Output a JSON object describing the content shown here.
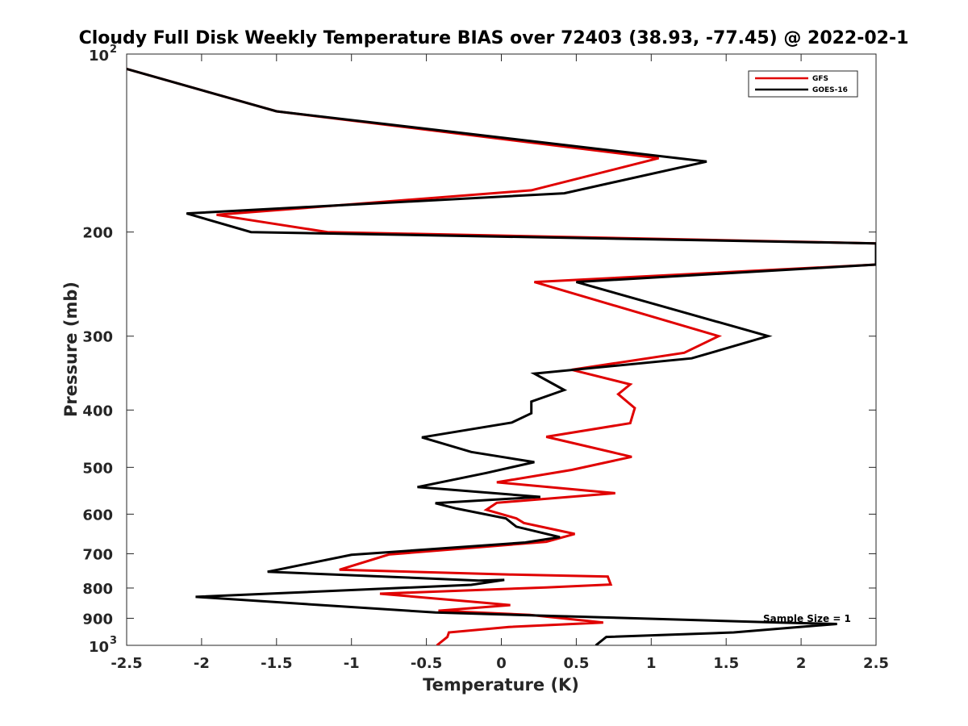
{
  "chart_data": {
    "type": "line",
    "title": "Cloudy Full Disk Weekly Temperature BIAS over 72403 (38.93, -77.45) @ 2022-02-1",
    "xlabel": "Temperature (K)",
    "ylabel": "Pressure (mb)",
    "xlim": [
      -2.5,
      2.5
    ],
    "ylim": [
      100,
      1000
    ],
    "y_scale": "log",
    "y_reversed": true,
    "grid": false,
    "legend_position": "top-right",
    "x_ticks": [
      "-2.5",
      "-2",
      "-1.5",
      "-1",
      "-0.5",
      "0",
      "0.5",
      "1",
      "1.5",
      "2",
      "2.5"
    ],
    "y_ticks": [
      {
        "value": 100,
        "label": "10",
        "sup": "2"
      },
      {
        "value": 200,
        "label": "200",
        "sup": ""
      },
      {
        "value": 300,
        "label": "300",
        "sup": ""
      },
      {
        "value": 400,
        "label": "400",
        "sup": ""
      },
      {
        "value": 500,
        "label": "500",
        "sup": ""
      },
      {
        "value": 600,
        "label": "600",
        "sup": ""
      },
      {
        "value": 700,
        "label": "700",
        "sup": ""
      },
      {
        "value": 800,
        "label": "800",
        "sup": ""
      },
      {
        "value": 900,
        "label": "900",
        "sup": ""
      },
      {
        "value": 1000,
        "label": "10",
        "sup": "3"
      }
    ],
    "annotation": "Sample Size = 1",
    "series": [
      {
        "name": "GFS",
        "color": "#e00000",
        "points": [
          [
            -2.5,
            106
          ],
          [
            -1.5,
            125
          ],
          [
            1.05,
            150
          ],
          [
            0.2,
            170
          ],
          [
            -1.9,
            187
          ],
          [
            -1.16,
            200
          ],
          [
            2.5,
            209
          ],
          [
            2.5,
            227
          ],
          [
            0.22,
            243
          ],
          [
            1.45,
            300
          ],
          [
            1.22,
            320
          ],
          [
            0.47,
            342
          ],
          [
            0.86,
            362
          ],
          [
            0.78,
            376
          ],
          [
            0.89,
            397
          ],
          [
            0.86,
            421
          ],
          [
            0.3,
            444
          ],
          [
            0.87,
            480
          ],
          [
            0.47,
            505
          ],
          [
            -0.03,
            530
          ],
          [
            0.76,
            553
          ],
          [
            -0.03,
            574
          ],
          [
            -0.1,
            590
          ],
          [
            0.1,
            610
          ],
          [
            0.15,
            621
          ],
          [
            0.49,
            648
          ],
          [
            0.3,
            668
          ],
          [
            -0.75,
            702
          ],
          [
            -1.08,
            745
          ],
          [
            0.06,
            759
          ],
          [
            0.71,
            765
          ],
          [
            0.73,
            789
          ],
          [
            0.3,
            798
          ],
          [
            -0.81,
            818
          ],
          [
            -0.12,
            847
          ],
          [
            0.06,
            855
          ],
          [
            -0.42,
            874
          ],
          [
            0.19,
            888
          ],
          [
            0.68,
            915
          ],
          [
            0.05,
            931
          ],
          [
            -0.35,
            951
          ],
          [
            -0.36,
            968
          ],
          [
            -0.43,
            1000
          ]
        ]
      },
      {
        "name": "GOES-16",
        "color": "#000000",
        "points": [
          [
            -2.5,
            106
          ],
          [
            -1.5,
            125
          ],
          [
            1.37,
            152
          ],
          [
            0.42,
            172
          ],
          [
            -2.1,
            186
          ],
          [
            -1.67,
            200
          ],
          [
            2.5,
            209
          ],
          [
            2.5,
            227
          ],
          [
            0.5,
            243
          ],
          [
            1.78,
            300
          ],
          [
            1.27,
            327
          ],
          [
            0.22,
            347
          ],
          [
            0.42,
            370
          ],
          [
            0.2,
            387
          ],
          [
            0.2,
            405
          ],
          [
            0.07,
            420
          ],
          [
            -0.53,
            445
          ],
          [
            -0.2,
            471
          ],
          [
            0.22,
            490
          ],
          [
            -0.1,
            511
          ],
          [
            -0.56,
            540
          ],
          [
            0.26,
            561
          ],
          [
            -0.44,
            575
          ],
          [
            -0.3,
            587
          ],
          [
            0.03,
            610
          ],
          [
            0.1,
            630
          ],
          [
            0.39,
            656
          ],
          [
            0.16,
            670
          ],
          [
            -1.0,
            703
          ],
          [
            -1.56,
            751
          ],
          [
            -0.15,
            777
          ],
          [
            0.02,
            775
          ],
          [
            -0.2,
            790
          ],
          [
            -2.04,
            828
          ],
          [
            -0.44,
            880
          ],
          [
            1.85,
            915
          ],
          [
            2.24,
            920
          ],
          [
            1.99,
            931
          ],
          [
            1.55,
            951
          ],
          [
            0.7,
            968
          ],
          [
            0.63,
            1000
          ]
        ]
      }
    ]
  }
}
